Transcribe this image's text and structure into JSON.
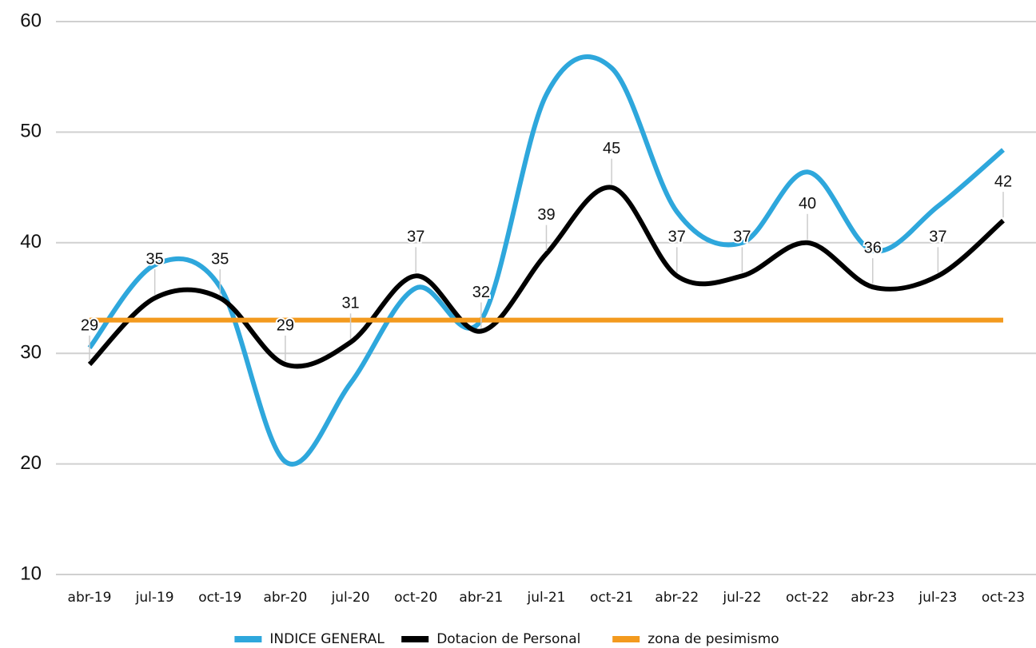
{
  "chart_data": {
    "type": "line",
    "categories": [
      "abr-19",
      "jul-19",
      "oct-19",
      "abr-20",
      "jul-20",
      "oct-20",
      "abr-21",
      "jul-21",
      "oct-21",
      "abr-22",
      "jul-22",
      "oct-22",
      "abr-23",
      "jul-23",
      "oct-23"
    ],
    "series": [
      {
        "name": "INDICE GENERAL",
        "color": "#2ea7dc",
        "values": [
          30.5,
          38,
          36,
          20.2,
          27.3,
          35.9,
          33,
          53.4,
          55.8,
          42.8,
          40,
          46.4,
          39.3,
          43.3,
          48.4
        ]
      },
      {
        "name": "Dotacion de Personal",
        "color": "#000000",
        "values": [
          29,
          35,
          35,
          29,
          31,
          37,
          32,
          39,
          45,
          37,
          37,
          40,
          36,
          37,
          42
        ],
        "data_labels": true
      },
      {
        "name": "zona de pesimismo",
        "color": "#f39a1e",
        "values": [
          33,
          33,
          33,
          33,
          33,
          33,
          33,
          33,
          33,
          33,
          33,
          33,
          33,
          33,
          33
        ],
        "smooth": false
      }
    ],
    "ylim": [
      10,
      60
    ],
    "yticks": [
      10,
      20,
      30,
      40,
      50,
      60
    ],
    "grid": true,
    "legend": "bottom"
  }
}
